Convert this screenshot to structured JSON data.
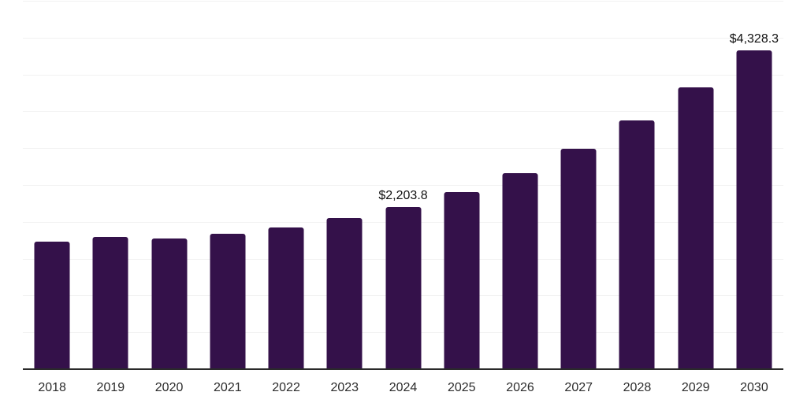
{
  "chart_data": {
    "type": "bar",
    "title": "",
    "xlabel": "",
    "ylabel": "",
    "categories": [
      "2018",
      "2019",
      "2020",
      "2021",
      "2022",
      "2023",
      "2024",
      "2025",
      "2026",
      "2027",
      "2028",
      "2029",
      "2030"
    ],
    "values": [
      1730,
      1800,
      1775,
      1835,
      1925,
      2050,
      2203.8,
      2400,
      2660,
      2990,
      3375,
      3830,
      4328.3
    ],
    "data_labels": [
      {
        "category": "2024",
        "text": "$2,203.8"
      },
      {
        "category": "2030",
        "text": "$4,328.3"
      }
    ],
    "ylim": [
      0,
      5000
    ],
    "gridline_interval": 500,
    "grid": "horizontal-only",
    "legend": "none",
    "colors": {
      "bar": "#34114A",
      "gridline": "#f2f2f2",
      "axis_line": "#2a2a2a",
      "tick_label": "#2b2b2b",
      "data_label": "#111111",
      "background": "#ffffff"
    }
  }
}
